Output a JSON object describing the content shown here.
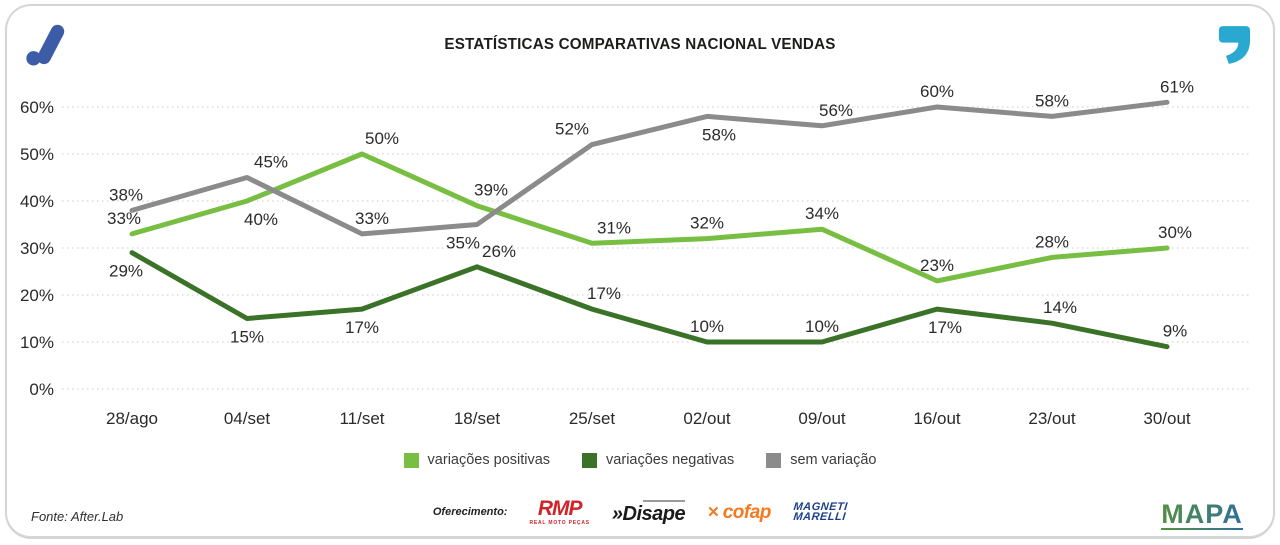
{
  "header": {
    "title": "ESTATÍSTICAS COMPARATIVAS NACIONAL VENDAS"
  },
  "logos": {
    "top_left_icon": "afterlab-brand-mark",
    "top_left_color": "#3d5ca8",
    "top_right_icon": "quote-mark",
    "top_right_color": "#29a9d0"
  },
  "chart_data": {
    "type": "line",
    "title": "ESTATÍSTICAS COMPARATIVAS NACIONAL VENDAS",
    "categories": [
      "28/ago",
      "04/set",
      "11/set",
      "18/set",
      "25/set",
      "02/out",
      "09/out",
      "16/out",
      "23/out",
      "30/out"
    ],
    "series": [
      {
        "name": "variações positivas",
        "color": "#77be43",
        "values": [
          33,
          40,
          50,
          39,
          31,
          32,
          34,
          23,
          28,
          30
        ],
        "label_side": [
          "above",
          "below",
          "above",
          "above",
          "above",
          "above",
          "above",
          "above",
          "above",
          "above"
        ],
        "label_dx": [
          -8,
          14,
          20,
          14,
          22,
          0,
          0,
          0,
          0,
          8
        ]
      },
      {
        "name": "variações negativas",
        "color": "#3a7227",
        "values": [
          29,
          15,
          17,
          26,
          17,
          10,
          10,
          17,
          14,
          9
        ],
        "label_side": [
          "below",
          "below",
          "below",
          "above",
          "above",
          "above",
          "above",
          "below",
          "above",
          "above"
        ],
        "label_dx": [
          -6,
          0,
          0,
          22,
          12,
          0,
          0,
          8,
          8,
          8
        ]
      },
      {
        "name": "sem variação",
        "color": "#8b8b8b",
        "values": [
          38,
          45,
          33,
          35,
          52,
          58,
          56,
          60,
          58,
          61
        ],
        "label_side": [
          "above",
          "above",
          "above",
          "below",
          "above",
          "below",
          "above",
          "above",
          "above",
          "above"
        ],
        "label_dx": [
          -6,
          24,
          10,
          -14,
          -20,
          12,
          14,
          0,
          0,
          10
        ]
      }
    ],
    "ylim": [
      0,
      65
    ],
    "yticks": [
      0,
      10,
      20,
      30,
      40,
      50,
      60
    ],
    "ytick_format": "{v}%",
    "xlabel": "",
    "ylabel": "",
    "grid": "horizontal-dotted",
    "legend_position": "bottom-center"
  },
  "footer": {
    "source": "Fonte: After.Lab",
    "offering_label": "Oferecimento:"
  },
  "sponsors": {
    "rmp": {
      "name": "RMP",
      "tagline": "REAL MOTO PEÇAS",
      "color": "#d2232a"
    },
    "disape": {
      "prefix": "»",
      "name": "Disape"
    },
    "cofap": {
      "mark": "✕",
      "name": "cofap",
      "color": "#f4791f"
    },
    "magneti_marelli": {
      "line1": "MAGNETI",
      "line2": "MARELLI",
      "color": "#1c3f8e"
    },
    "mapa": {
      "name": "MAPA",
      "color_start": "#57913f",
      "color_end": "#2f6e9e"
    }
  }
}
